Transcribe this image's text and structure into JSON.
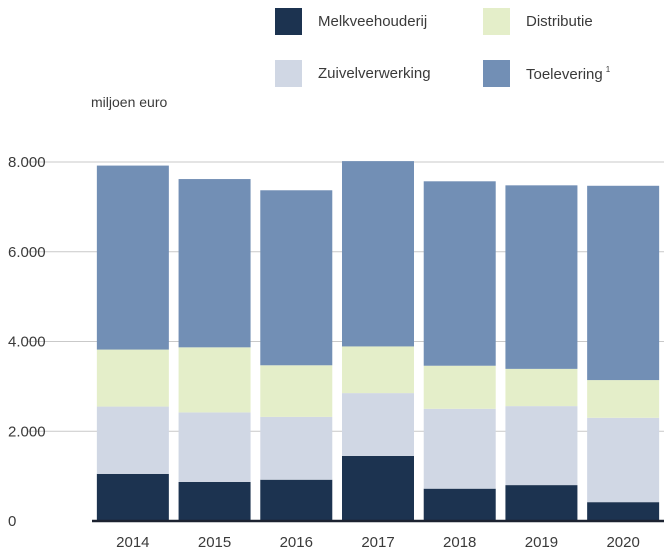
{
  "chart_data": {
    "type": "bar",
    "stacked": true,
    "categories": [
      "2014",
      "2015",
      "2016",
      "2017",
      "2018",
      "2019",
      "2020"
    ],
    "series": [
      {
        "name": "Melkveehouderij",
        "color": "#1c3350",
        "values": [
          1050,
          870,
          920,
          1450,
          720,
          800,
          420
        ]
      },
      {
        "name": "Zuivelverwerking",
        "color": "#d0d7e4",
        "values": [
          1500,
          1550,
          1400,
          1400,
          1780,
          1760,
          1880
        ]
      },
      {
        "name": "Distributie",
        "color": "#e4eec9",
        "values": [
          1270,
          1450,
          1150,
          1040,
          960,
          830,
          840
        ]
      },
      {
        "name": "Toelevering",
        "name_sup": "1",
        "color": "#728fb5",
        "values": [
          4100,
          3750,
          3900,
          4130,
          4110,
          4090,
          4330
        ]
      }
    ],
    "ylabel": "miljoen euro",
    "ylim": [
      0,
      8000
    ],
    "yticks": [
      0,
      2000,
      4000,
      6000,
      8000
    ],
    "ytick_labels": [
      "0",
      "2.000",
      "4.000",
      "6.000",
      "8.000"
    ],
    "grid": true,
    "legend_position": "top-right"
  }
}
